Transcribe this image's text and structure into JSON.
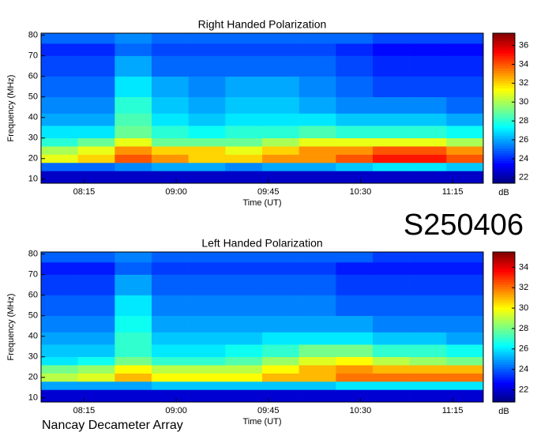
{
  "header": {
    "id": "S250406"
  },
  "footer": "Nancay Decameter Array",
  "chart_data": [
    {
      "type": "heatmap",
      "title": "Right Handed Polarization",
      "xlabel": "Time (UT)",
      "ylabel": "Frequency (MHz)",
      "colorbar_label": "dB",
      "colormap": "jet",
      "x_edges": [
        474,
        492,
        510,
        528,
        546,
        564,
        582,
        600,
        618,
        636,
        654,
        672,
        690
      ],
      "y_edges": [
        8,
        14,
        18,
        22,
        26,
        30,
        36,
        42,
        50,
        60,
        70,
        76,
        81
      ],
      "values": [
        [
          22.5,
          22.5,
          22.5,
          22.5,
          22.5,
          22.5,
          22.5,
          22.5,
          22.5,
          22.5,
          22.5,
          22.5
        ],
        [
          25,
          25,
          25.5,
          26,
          26,
          25.5,
          26,
          26,
          26.5,
          27,
          27,
          26.5
        ],
        [
          31,
          32,
          34,
          33,
          32,
          32,
          33,
          33,
          34,
          35,
          35,
          34
        ],
        [
          30,
          31,
          33,
          32,
          32,
          31,
          32,
          33,
          33,
          34,
          34,
          33
        ],
        [
          28,
          29,
          31,
          29,
          29,
          29,
          30,
          31,
          31,
          31,
          31,
          30
        ],
        [
          27,
          27,
          29,
          28,
          27.5,
          28,
          28,
          28.5,
          28,
          28,
          28,
          27.5
        ],
        [
          26,
          26,
          28.5,
          27,
          26.5,
          27,
          27,
          27,
          26.5,
          26.5,
          26.5,
          26
        ],
        [
          25.5,
          25.5,
          28,
          26.5,
          26,
          26.5,
          26.5,
          26,
          25.5,
          25.5,
          25.5,
          25
        ],
        [
          25,
          25,
          27,
          26,
          25.5,
          26,
          26,
          25.5,
          25,
          24.5,
          24.5,
          24.5
        ],
        [
          24.5,
          24.5,
          26,
          25,
          25,
          25,
          25,
          25,
          24.5,
          24,
          24,
          24
        ],
        [
          24,
          24,
          25,
          24.5,
          24.5,
          24.5,
          24.5,
          24.5,
          24,
          23.5,
          23.5,
          23.5
        ],
        [
          25,
          25,
          25.5,
          25,
          25,
          25,
          25,
          25,
          25,
          24.5,
          24.5,
          24.5
        ]
      ],
      "xlim": [
        474,
        690
      ],
      "ylim": [
        8,
        81
      ],
      "zlim": [
        21.4,
        37.3
      ],
      "xticks": [
        {
          "value": 495,
          "label": "08:15"
        },
        {
          "value": 540,
          "label": "09:00"
        },
        {
          "value": 585,
          "label": "09:45"
        },
        {
          "value": 630,
          "label": "10:30"
        },
        {
          "value": 675,
          "label": "11:15"
        }
      ],
      "yticks": [
        10,
        20,
        30,
        40,
        50,
        60,
        70,
        80
      ],
      "zticks": [
        22,
        24,
        26,
        28,
        30,
        32,
        34,
        36
      ]
    },
    {
      "type": "heatmap",
      "title": "Left Handed Polarization",
      "xlabel": "Time (UT)",
      "ylabel": "Frequency (MHz)",
      "colorbar_label": "dB",
      "colormap": "jet",
      "x_edges": [
        474,
        492,
        510,
        528,
        546,
        564,
        582,
        600,
        618,
        636,
        654,
        672,
        690
      ],
      "y_edges": [
        8,
        14,
        18,
        22,
        26,
        30,
        36,
        42,
        50,
        60,
        70,
        76,
        81
      ],
      "values": [
        [
          22,
          22,
          22,
          22,
          22,
          22,
          22,
          22,
          22,
          22,
          22,
          22
        ],
        [
          25,
          25,
          25,
          25.5,
          25.5,
          25.5,
          25.5,
          25.5,
          26,
          26,
          26,
          26
        ],
        [
          29,
          29.5,
          31,
          30,
          30,
          30,
          31,
          31,
          32,
          32,
          32,
          32
        ],
        [
          28,
          28.5,
          30,
          29,
          29,
          29,
          30,
          31,
          31.5,
          31,
          31,
          31
        ],
        [
          26,
          26.5,
          28,
          27,
          27,
          27.5,
          28.5,
          29.5,
          30,
          29,
          28.5,
          28
        ],
        [
          25.5,
          25.5,
          27,
          26,
          26,
          26.5,
          27,
          28,
          28,
          27,
          27,
          26.5
        ],
        [
          25,
          25,
          27,
          25.5,
          25.5,
          25.5,
          26,
          26,
          26,
          25.5,
          25.5,
          25
        ],
        [
          24.5,
          24.5,
          26.5,
          25,
          25,
          25,
          25,
          25,
          25,
          24.5,
          24.5,
          24.5
        ],
        [
          24,
          24,
          26,
          24.5,
          24.5,
          24.5,
          24.5,
          24.5,
          24,
          24,
          24,
          24
        ],
        [
          23.5,
          23.5,
          25,
          24,
          24,
          24,
          24,
          24,
          23.5,
          23.5,
          23.5,
          23.5
        ],
        [
          23,
          23,
          24,
          23.5,
          23.5,
          23.5,
          23.5,
          23.5,
          23,
          23,
          23,
          23
        ],
        [
          24,
          24,
          24.5,
          24,
          24,
          24,
          24,
          24,
          24,
          23.5,
          23.5,
          23.5
        ]
      ],
      "xlim": [
        474,
        690
      ],
      "ylim": [
        8,
        81
      ],
      "zlim": [
        20.8,
        35.5
      ],
      "xticks": [
        {
          "value": 495,
          "label": "08:15"
        },
        {
          "value": 540,
          "label": "09:00"
        },
        {
          "value": 585,
          "label": "09:45"
        },
        {
          "value": 630,
          "label": "10:30"
        },
        {
          "value": 675,
          "label": "11:15"
        }
      ],
      "yticks": [
        10,
        20,
        30,
        40,
        50,
        60,
        70,
        80
      ],
      "zticks": [
        22,
        24,
        26,
        28,
        30,
        32,
        34
      ]
    }
  ]
}
